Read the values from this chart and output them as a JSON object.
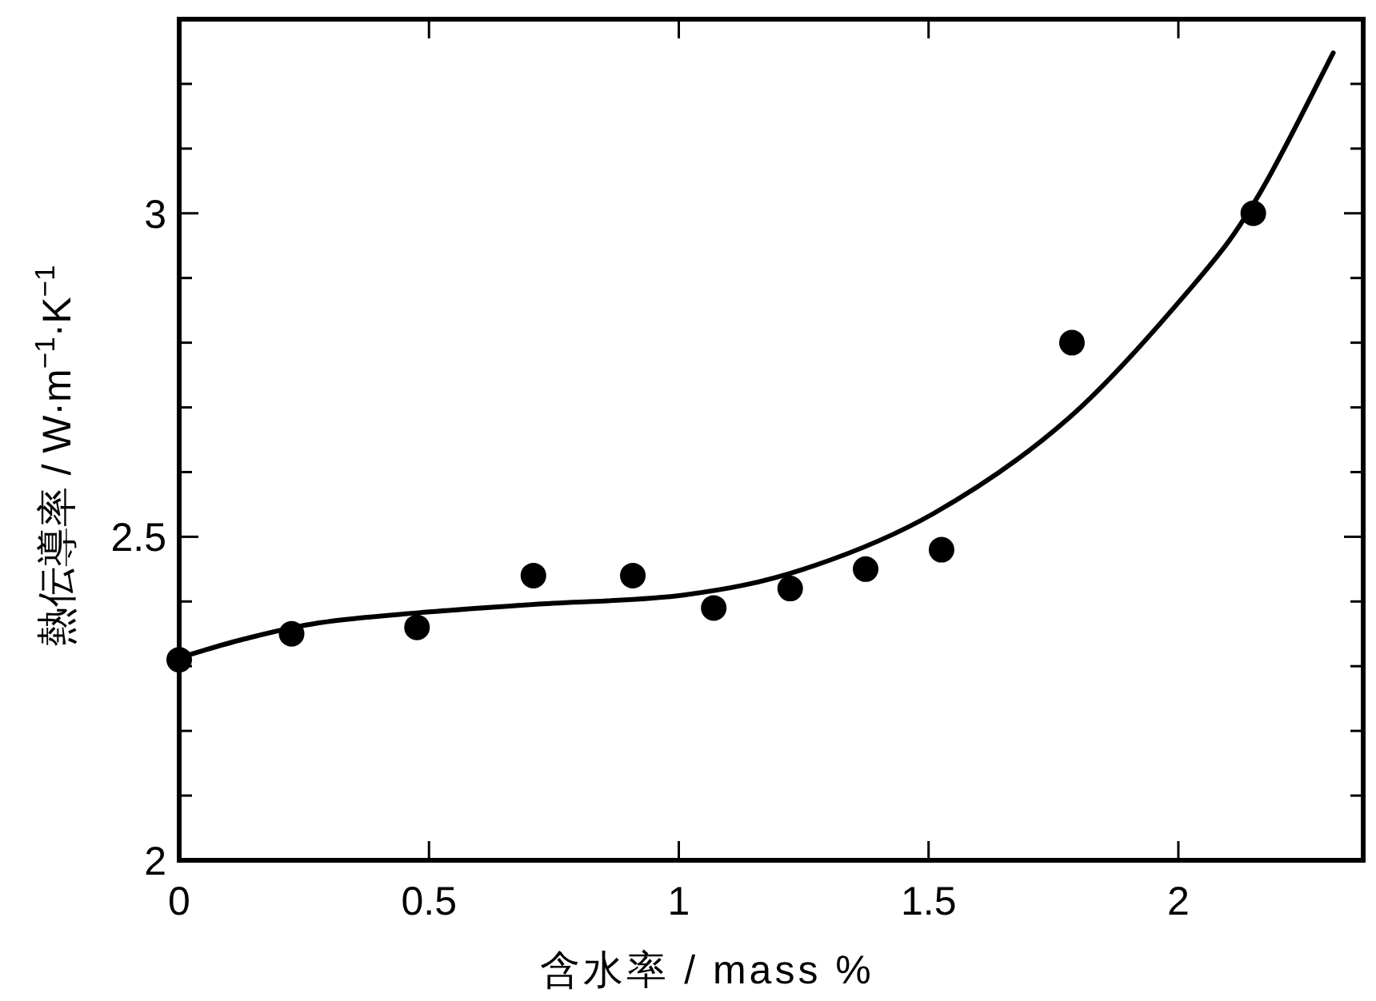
{
  "chart_data": {
    "type": "scatter",
    "xlabel": "含水率 / mass %",
    "ylabel": "熱伝導率  / W·m$^{−1}$·K$^{−1}$",
    "xlim": [
      0,
      2.37
    ],
    "ylim": [
      2,
      3.3
    ],
    "xticks": [
      0,
      0.5,
      1,
      1.5,
      2
    ],
    "yticks": [
      2,
      {
        "value": 2.1,
        "label": null
      },
      {
        "value": 2.2,
        "label": null
      },
      {
        "value": 2.3,
        "label": null
      },
      {
        "value": 2.4,
        "label": null
      },
      2.5,
      {
        "value": 2.6,
        "label": null
      },
      {
        "value": 2.7,
        "label": null
      },
      {
        "value": 2.8,
        "label": null
      },
      {
        "value": 2.9,
        "label": null
      },
      3,
      {
        "value": 3.1,
        "label": null
      },
      {
        "value": 3.2,
        "label": null
      }
    ],
    "grid": false,
    "marker": "circle",
    "series": [
      {
        "color": "#000000",
        "x": [
          0,
          0.225,
          0.476,
          0.709,
          0.908,
          1.07,
          1.223,
          1.374,
          1.526,
          1.787,
          2.15
        ],
        "values": [
          2.31,
          2.35,
          2.36,
          2.44,
          2.44,
          2.39,
          2.42,
          2.45,
          2.48,
          2.8,
          3.0
        ]
      },
      {
        "type": "line",
        "color": "#000000",
        "line_style": "solid",
        "marker": "none",
        "x": [
          0,
          0.13,
          0.28,
          0.47,
          0.72,
          1.01,
          1.25,
          1.51,
          1.78,
          2.03,
          2.16,
          2.31
        ],
        "values": [
          2.313,
          2.342,
          2.367,
          2.382,
          2.396,
          2.41,
          2.45,
          2.536,
          2.683,
          2.889,
          3.027,
          3.248
        ]
      }
    ]
  }
}
